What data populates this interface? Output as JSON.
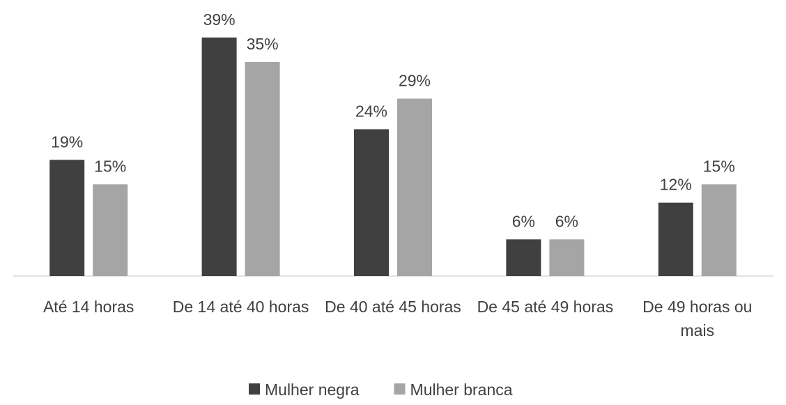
{
  "chart_data": {
    "type": "bar",
    "categories": [
      "Até 14 horas",
      "De 14 até 40 horas",
      "De 40 até 45 horas",
      "De 45 até 49 horas",
      "De 49 horas ou mais"
    ],
    "series": [
      {
        "name": "Mulher negra",
        "color": "#404040",
        "values": [
          19,
          39,
          24,
          6,
          12
        ],
        "value_labels": [
          "19%",
          "39%",
          "24%",
          "6%",
          "12%"
        ]
      },
      {
        "name": "Mulher branca",
        "color": "#a5a5a5",
        "values": [
          15,
          35,
          29,
          6,
          15
        ],
        "value_labels": [
          "15%",
          "35%",
          "29%",
          "6%",
          "15%"
        ]
      }
    ],
    "ylim": [
      0,
      40
    ],
    "legend": "bottom"
  }
}
